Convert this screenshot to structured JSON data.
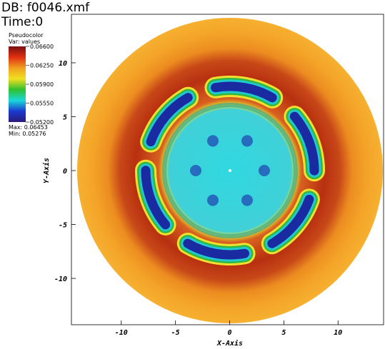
{
  "chart_data": {
    "type": "pseudocolor",
    "db_label": "DB: f0046.xmf",
    "time_label": "Time:0",
    "plot_name": "Pseudocolor",
    "var_label": "Var: values",
    "colorbar_ticks": [
      {
        "value": 0.066,
        "label": "0.06600"
      },
      {
        "value": 0.0625,
        "label": "0.06250"
      },
      {
        "value": 0.059,
        "label": "0.05900"
      },
      {
        "value": 0.0555,
        "label": "0.05550"
      },
      {
        "value": 0.052,
        "label": "0.05200"
      }
    ],
    "colorbar_lim": [
      0.052,
      0.066
    ],
    "colorbar_colors": [
      "#2a1a7a",
      "#1a3ad0",
      "#1ad8d8",
      "#30c030",
      "#f0e020",
      "#f0a020",
      "#e03010",
      "#7a1010"
    ],
    "max_label": "Max: 0.06453",
    "min_label": "Min: 0.05276",
    "xlabel": "X-Axis",
    "ylabel": "Y-Axis",
    "xlim": [
      -14.6,
      14.2
    ],
    "ylim": [
      -14.3,
      14.5
    ],
    "xticks": [
      -10,
      -5,
      0,
      5,
      10
    ],
    "yticks": [
      -10,
      -5,
      0,
      5,
      10
    ]
  }
}
